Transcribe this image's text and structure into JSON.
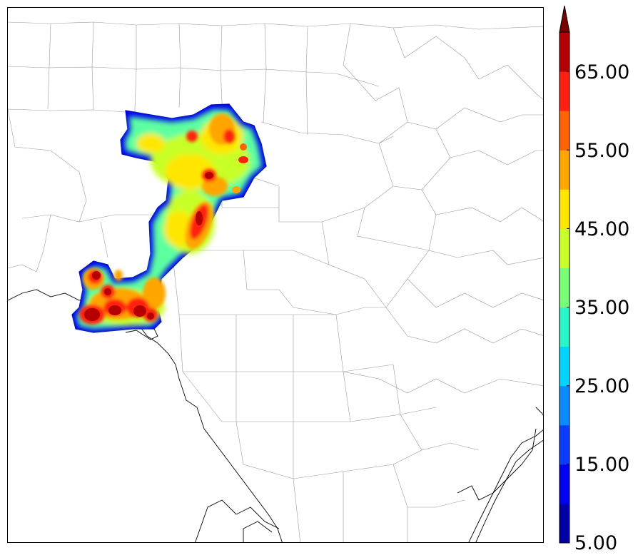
{
  "colorbar": {
    "min_label": "5.00",
    "tick_labels": [
      "15.00",
      "25.00",
      "35.00",
      "45.00",
      "55.00",
      "65.00"
    ],
    "bin_colors": [
      "#0000a8",
      "#0000f0",
      "#0a3cff",
      "#0a8cff",
      "#00d4ff",
      "#28f5c8",
      "#78ff78",
      "#c8ff28",
      "#ffe600",
      "#ffa500",
      "#ff6400",
      "#ff2010",
      "#b40000"
    ],
    "extend_color": "#7a0000",
    "extend": "max"
  },
  "map": {
    "land_color": "#ffffff",
    "county_line_color": "#a0a0a0",
    "coast_color": "#000000"
  }
}
